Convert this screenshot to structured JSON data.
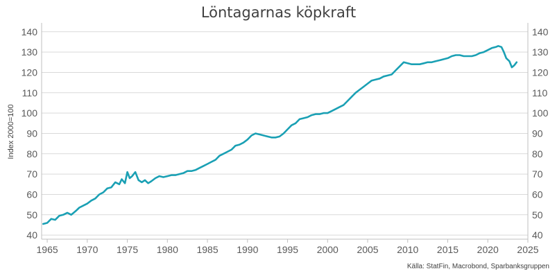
{
  "chart_data": {
    "type": "line",
    "title": "Löntagarnas köpkraft",
    "xlabel": "",
    "ylabel": "Index 2000=100",
    "source": "Källa: StatFin, Macrobond, Sparbanksgruppen",
    "xlim": [
      1964.3,
      2025
    ],
    "ylim": [
      38,
      143
    ],
    "x_ticks": [
      1965,
      1970,
      1975,
      1980,
      1985,
      1990,
      1995,
      2000,
      2005,
      2010,
      2015,
      2020,
      2025
    ],
    "y_ticks": [
      40,
      50,
      60,
      70,
      80,
      90,
      100,
      110,
      120,
      130,
      140
    ],
    "right_axis": true,
    "grid": "horizontal",
    "line_color": "#1aa0b4",
    "series": [
      {
        "x": [
          1964.5,
          1965.0,
          1965.5,
          1966.0,
          1966.5,
          1967.0,
          1967.5,
          1968.0,
          1968.3,
          1968.6,
          1969.0,
          1969.5,
          1970.0,
          1970.5,
          1971.0,
          1971.5,
          1972.0,
          1972.5,
          1973.0,
          1973.5,
          1974.0,
          1974.3,
          1974.7,
          1975.0,
          1975.3,
          1975.6,
          1976.0,
          1976.4,
          1976.8,
          1977.2,
          1977.6,
          1978.0,
          1978.5,
          1979.0,
          1979.5,
          1980.0,
          1980.5,
          1981.0,
          1981.5,
          1982.0,
          1982.5,
          1983.0,
          1983.5,
          1984.0,
          1984.5,
          1985.0,
          1985.5,
          1986.0,
          1986.5,
          1987.0,
          1987.5,
          1988.0,
          1988.5,
          1989.0,
          1989.5,
          1990.0,
          1990.5,
          1991.0,
          1991.5,
          1992.0,
          1992.5,
          1993.0,
          1993.5,
          1994.0,
          1994.5,
          1995.0,
          1995.5,
          1996.0,
          1996.5,
          1997.0,
          1997.5,
          1998.0,
          1998.5,
          1999.0,
          1999.5,
          2000.0,
          2000.5,
          2001.0,
          2001.5,
          2002.0,
          2002.5,
          2003.0,
          2003.5,
          2004.0,
          2004.5,
          2005.0,
          2005.5,
          2006.0,
          2006.5,
          2007.0,
          2007.5,
          2008.0,
          2008.5,
          2009.0,
          2009.5,
          2010.0,
          2010.5,
          2011.0,
          2011.5,
          2012.0,
          2012.5,
          2013.0,
          2013.5,
          2014.0,
          2014.5,
          2015.0,
          2015.5,
          2016.0,
          2016.5,
          2017.0,
          2017.5,
          2018.0,
          2018.5,
          2019.0,
          2019.5,
          2020.0,
          2020.5,
          2021.0,
          2021.3,
          2021.7,
          2022.0,
          2022.3,
          2022.7,
          2023.0,
          2023.3,
          2023.6
        ],
        "values": [
          45.5,
          46,
          48,
          47.5,
          49.5,
          50,
          51,
          50,
          51,
          52,
          53.5,
          54.5,
          55.5,
          57,
          58,
          60,
          61,
          63,
          63.5,
          66,
          65,
          67.5,
          65.5,
          71,
          68,
          69,
          71,
          67,
          66,
          67,
          65.5,
          66.5,
          68,
          69,
          68.5,
          69,
          69.5,
          69.5,
          70,
          70.5,
          71.5,
          71.5,
          72,
          73,
          74,
          75,
          76,
          77,
          79,
          80,
          81,
          82,
          84,
          84.5,
          85.5,
          87,
          89,
          90,
          89.5,
          89,
          88.5,
          88,
          88,
          88.5,
          90,
          92,
          94,
          95,
          97,
          97.5,
          98,
          99,
          99.5,
          99.5,
          100,
          100,
          101,
          102,
          103,
          104,
          106,
          108,
          110,
          111.5,
          113,
          114.5,
          116,
          116.5,
          117,
          118,
          118.5,
          119,
          121,
          123,
          125,
          124.5,
          124,
          124,
          124,
          124.5,
          125,
          125,
          125.5,
          126,
          126.5,
          127,
          128,
          128.5,
          128.5,
          128,
          128,
          128,
          128.5,
          129.5,
          130,
          131,
          132,
          132.5,
          133,
          132.5,
          130,
          127,
          125.5,
          122.5,
          123.5,
          125
        ]
      }
    ]
  }
}
